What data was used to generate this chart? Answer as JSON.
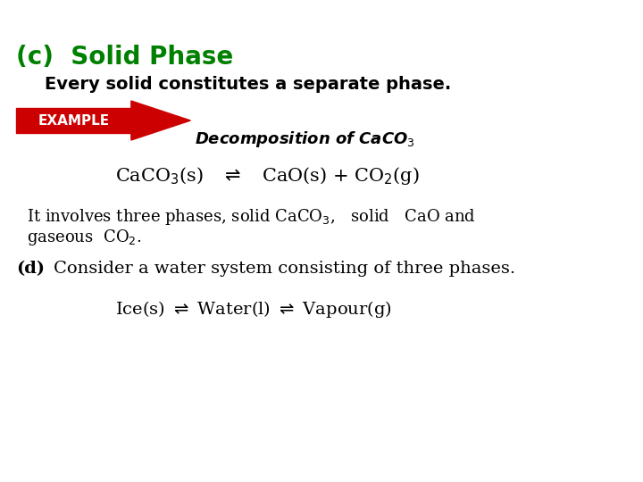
{
  "bg_color": "#ffffff",
  "title_text": "(c)  Solid Phase",
  "title_color": "#008000",
  "title_fontsize": 20,
  "title_bold": true,
  "subtitle_text": "Every solid constitutes a separate phase.",
  "subtitle_fontsize": 14,
  "subtitle_bold": true,
  "example_label": "EXAMPLE",
  "example_bg": "#cc0000",
  "example_text_color": "#ffffff",
  "decomp_label": "Decomposition of CaCO$_3$",
  "decomp_fontsize": 13,
  "eq1_text": "CaCO$_3$(s)   $\\rightleftharpoons$   CaO(s) + CO$_2$(g)",
  "eq1_fontsize": 15,
  "para1_line1": "It involves three phases, solid CaCO$_3$,   solid   CaO and",
  "para1_line2": "gaseous  CO$_2$.",
  "para_fontsize": 13,
  "section_d_label": "(d)",
  "section_d_text": "Consider a water system consisting of three phases.",
  "section_d_fontsize": 14,
  "eq2_text": "Ice(s) $\\rightleftharpoons$ Water(l) $\\rightleftharpoons$ Vapour(g)",
  "eq2_fontsize": 14
}
